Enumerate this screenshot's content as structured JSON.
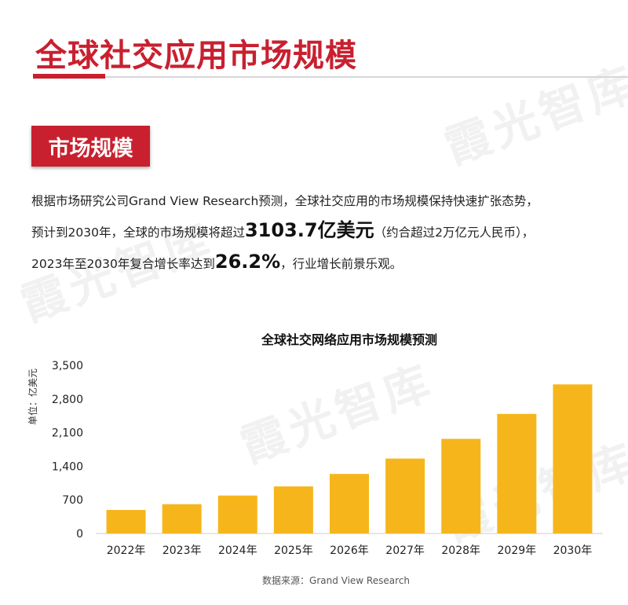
{
  "header": {
    "title": "全球社交应用市场规模"
  },
  "section": {
    "badge": "市场规模"
  },
  "paragraph": {
    "line1": "根据市场研究公司Grand View Research预测，全球社交应用的市场规模保持快速扩张态势，",
    "line2_pre": "预计到2030年，全球的市场规模将超过",
    "line2_highlight": "3103.7亿美元",
    "line2_post": "（约合超过2万亿元人民币），",
    "line3_pre": "2023年至2030年复合增长率达到",
    "line3_highlight": "26.2%",
    "line3_post": "，行业增长前景乐观。"
  },
  "watermark": "霞光智库",
  "chart_data": {
    "type": "bar",
    "title": "全球社交网络应用市场规模预测",
    "ylabel": "单位：亿美元",
    "source": "数据来源：Grand View Research",
    "categories": [
      "2022年",
      "2023年",
      "2024年",
      "2025年",
      "2026年",
      "2027年",
      "2028年",
      "2029年",
      "2030年"
    ],
    "values": [
      490,
      610,
      790,
      980,
      1240,
      1560,
      1970,
      2490,
      3104
    ],
    "yticks": [
      "0",
      "700",
      "1,400",
      "2,100",
      "2,800",
      "3,500"
    ],
    "ylim": [
      0,
      3500
    ],
    "grid": false,
    "bar_color": "#f6b61b"
  }
}
